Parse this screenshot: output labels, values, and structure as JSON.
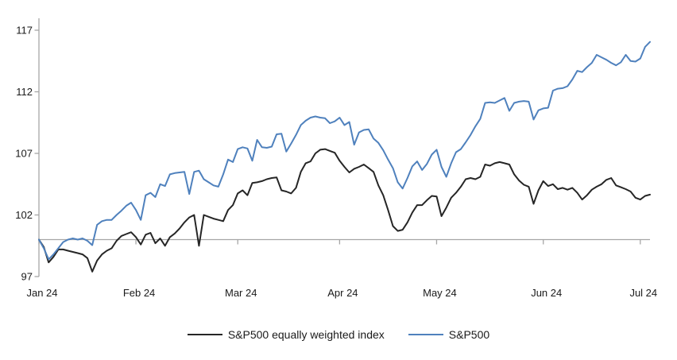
{
  "chart_data": {
    "type": "line",
    "title": "",
    "xlabel": "",
    "ylabel": "",
    "ylim": [
      97,
      117
    ],
    "y_ticks": [
      117,
      112,
      107,
      102,
      97
    ],
    "baseline_value": 100,
    "grid": "off",
    "legend_position": "bottom",
    "x_unit": "trading-day index, Jan 24 to Jul 24",
    "x_ticks": [
      {
        "label": "Jan 24",
        "day": 0
      },
      {
        "label": "Feb 24",
        "day": 20
      },
      {
        "label": "Mar 24",
        "day": 41
      },
      {
        "label": "Apr 24",
        "day": 62
      },
      {
        "label": "May 24",
        "day": 82
      },
      {
        "label": "Jun 24",
        "day": 104
      },
      {
        "label": "Jul 24",
        "day": 124
      }
    ],
    "series": [
      {
        "name": "S&P500 equally weighted index",
        "color": "#262626",
        "values": [
          100,
          99.4,
          98.15,
          98.6,
          99.2,
          99.2,
          99.1,
          99,
          98.9,
          98.8,
          98.5,
          97.4,
          98.3,
          98.8,
          99.1,
          99.3,
          99.9,
          100.3,
          100.45,
          100.6,
          100.2,
          99.6,
          100.4,
          100.55,
          99.7,
          100.1,
          99.5,
          100.2,
          100.5,
          100.9,
          101.4,
          101.8,
          102,
          99.5,
          102,
          101.85,
          101.7,
          101.6,
          101.5,
          102.4,
          102.8,
          103.75,
          104,
          103.6,
          104.6,
          104.65,
          104.75,
          104.9,
          105,
          105.05,
          104,
          103.9,
          103.75,
          104.2,
          105.5,
          106.2,
          106.35,
          107,
          107.3,
          107.35,
          107.2,
          107.05,
          106.4,
          105.9,
          105.45,
          105.75,
          105.9,
          106.1,
          105.8,
          105.5,
          104.4,
          103.6,
          102.4,
          101.1,
          100.7,
          100.8,
          101.4,
          102.2,
          102.8,
          102.8,
          103.2,
          103.55,
          103.5,
          101.9,
          102.6,
          103.4,
          103.8,
          104.3,
          104.9,
          105,
          104.9,
          105.1,
          106.1,
          106,
          106.2,
          106.3,
          106.2,
          106.1,
          105.3,
          104.8,
          104.45,
          104.3,
          102.9,
          104,
          104.75,
          104.35,
          104.5,
          104.1,
          104.2,
          104.05,
          104.2,
          103.8,
          103.25,
          103.6,
          104.05,
          104.3,
          104.5,
          104.85,
          105,
          104.4,
          104.25,
          104.1,
          103.9,
          103.4,
          103.25,
          103.55,
          103.65
        ]
      },
      {
        "name": "S&P500",
        "color": "#4f81bd",
        "values": [
          100,
          99.3,
          98.4,
          98.8,
          99.3,
          99.8,
          100,
          100.1,
          100,
          100.1,
          99.9,
          99.55,
          101.2,
          101.5,
          101.6,
          101.6,
          102,
          102.35,
          102.75,
          103,
          102.4,
          101.6,
          103.6,
          103.8,
          103.45,
          104.5,
          104.35,
          105.3,
          105.4,
          105.45,
          105.5,
          103.7,
          105.5,
          105.6,
          104.9,
          104.65,
          104.4,
          104.3,
          105.3,
          106.5,
          106.3,
          107.35,
          107.5,
          107.4,
          106.4,
          108.1,
          107.5,
          107.45,
          107.55,
          108.55,
          108.6,
          107.15,
          107.8,
          108.5,
          109.3,
          109.65,
          109.9,
          110,
          109.9,
          109.85,
          109.45,
          109.6,
          109.9,
          109.3,
          109.55,
          107.7,
          108.7,
          108.9,
          108.95,
          108.2,
          107.85,
          107.25,
          106.5,
          105.8,
          104.65,
          104.15,
          105,
          105.95,
          106.35,
          105.65,
          106.15,
          106.9,
          107.3,
          105.9,
          105.1,
          106.2,
          107.1,
          107.35,
          107.9,
          108.5,
          109.2,
          109.8,
          111.1,
          111.15,
          111.1,
          111.3,
          111.5,
          110.45,
          111.1,
          111.2,
          111.25,
          111.2,
          109.75,
          110.5,
          110.65,
          110.7,
          112.1,
          112.25,
          112.3,
          112.45,
          113,
          113.7,
          113.6,
          114,
          114.35,
          115,
          114.8,
          114.6,
          114.35,
          114.15,
          114.4,
          115,
          114.5,
          114.45,
          114.7,
          115.65,
          116.05
        ]
      }
    ],
    "axis_color": "#a6a6a6",
    "text_color": "#1a1a1a"
  },
  "legend": {
    "item1": "S&P500 equally weighted index",
    "item2": "S&P500"
  }
}
